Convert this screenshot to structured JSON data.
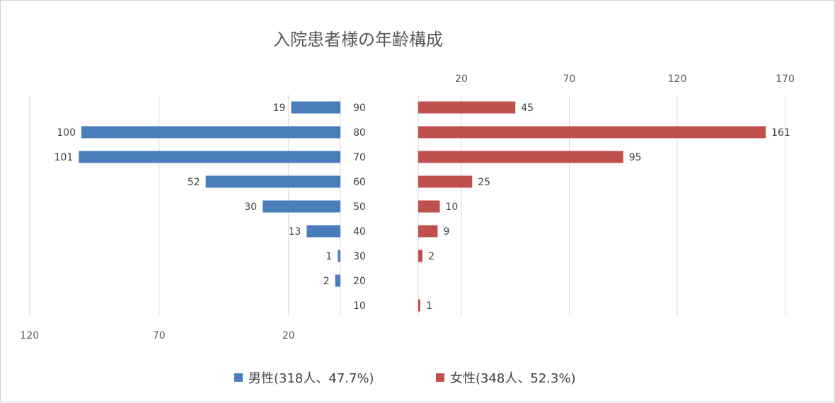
{
  "chart_data": {
    "type": "bar",
    "title": "入院患者様の年齢構成",
    "categories": [
      "90",
      "80",
      "70",
      "60",
      "50",
      "40",
      "30",
      "20",
      "10"
    ],
    "series": [
      {
        "name": "男性(318人、47.7%)",
        "values": [
          19,
          100,
          101,
          52,
          30,
          13,
          1,
          2,
          null
        ],
        "color": "#4a7ebb"
      },
      {
        "name": "女性(348人、52.3%)",
        "values": [
          45,
          161,
          95,
          25,
          10,
          9,
          2,
          null,
          1
        ],
        "color": "#c0504d"
      }
    ],
    "left_axis": {
      "ticks": [
        "120",
        "70",
        "20"
      ],
      "range": [
        0,
        120
      ],
      "reversed": true,
      "position": "bottom"
    },
    "right_axis": {
      "ticks": [
        "20",
        "70",
        "120",
        "170"
      ],
      "range": [
        0,
        170
      ],
      "position": "top"
    },
    "grid": true,
    "legend": "bottom"
  }
}
